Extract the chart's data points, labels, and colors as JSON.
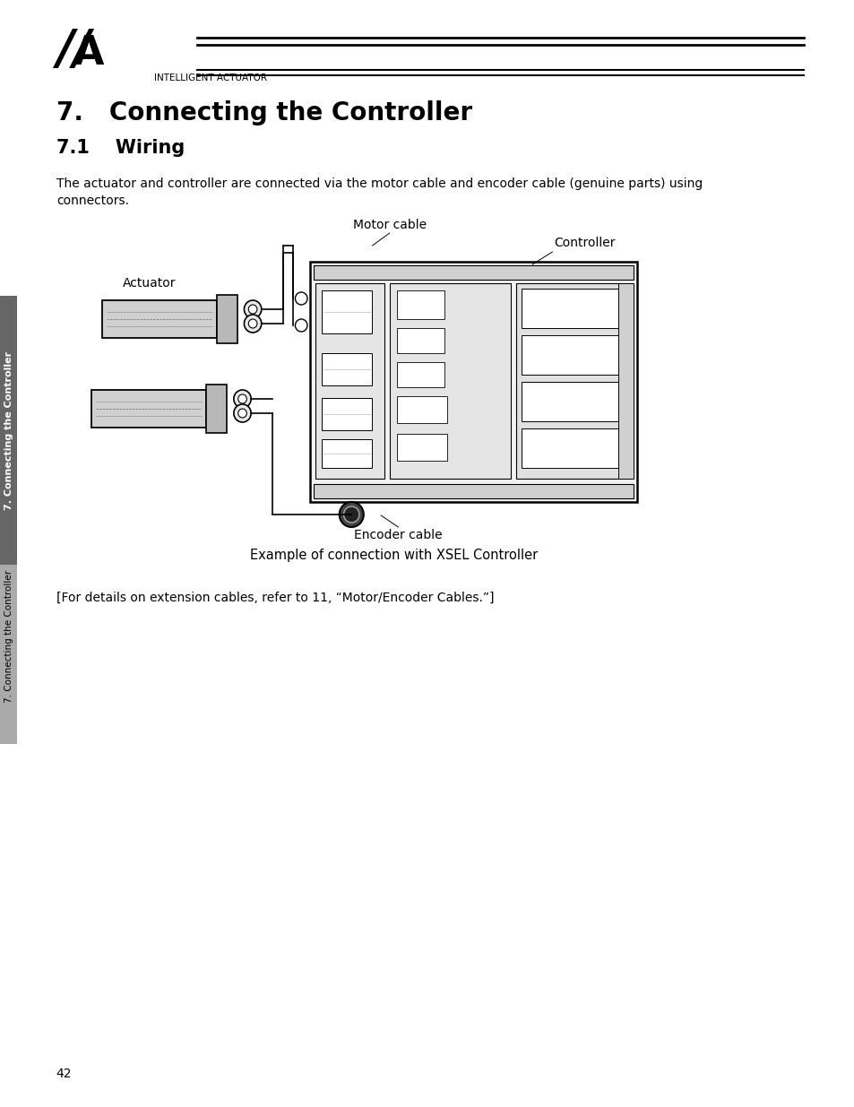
{
  "page_bg": "#ffffff",
  "logo_text": "INTELLIGENT ACTUATOR",
  "chapter_title": "7.   Connecting the Controller",
  "section_title": "7.1    Wiring",
  "body_text": "The actuator and controller are connected via the motor cable and encoder cable (genuine parts) using\nconnectors.",
  "diagram_caption": "Example of connection with XSEL Controller",
  "footer_note": "[For details on extension cables, refer to 11, “Motor/Encoder Cables.”]",
  "page_number": "42",
  "sidebar_text": "7. Connecting the Controller",
  "motor_cable_label": "Motor cable",
  "controller_label": "Controller",
  "actuator_label": "Actuator",
  "encoder_cable_label": "Encoder cable",
  "sidebar_color": "#2c2c2c",
  "sidebar_bg": "#666666"
}
